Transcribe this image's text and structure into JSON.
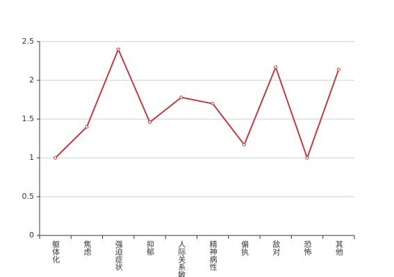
{
  "chart_data": {
    "type": "line",
    "categories": [
      "躯体化",
      "焦虑",
      "强迫症状",
      "抑郁",
      "人际关系敏感",
      "精神病性",
      "偏执",
      "敌对",
      "恐怖",
      "其他"
    ],
    "series": [
      {
        "color": "#c0393b",
        "values": [
          1.0,
          1.4,
          2.4,
          1.46,
          1.78,
          1.7,
          1.17,
          2.17,
          1.0,
          2.14
        ]
      }
    ],
    "ylim": [
      0,
      2.5
    ],
    "yticks": [
      0,
      0.5,
      1,
      1.5,
      2,
      2.5
    ],
    "grid": true
  }
}
